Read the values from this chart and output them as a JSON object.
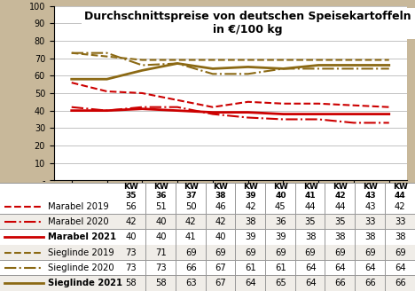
{
  "title_line1": "Durchschnittspreise von deutschen Speisekartoffeln",
  "title_line2": "in €/100 kg",
  "kw_labels": [
    "KW\n35",
    "KW\n36",
    "KW\n37",
    "KW\n38",
    "KW\n39",
    "KW\n40",
    "KW\n41",
    "KW\n42",
    "KW\n43",
    "KW\n44"
  ],
  "series": [
    {
      "name": "Marabel 2019",
      "values": [
        56,
        51,
        50,
        46,
        42,
        45,
        44,
        44,
        43,
        42
      ],
      "color": "#cc0000",
      "linestyle": "--",
      "linewidth": 1.5
    },
    {
      "name": "Marabel 2020",
      "values": [
        42,
        40,
        42,
        42,
        38,
        36,
        35,
        35,
        33,
        33
      ],
      "color": "#cc0000",
      "linestyle": "-.",
      "linewidth": 1.5
    },
    {
      "name": "Marabel 2021",
      "values": [
        40,
        40,
        41,
        40,
        39,
        39,
        38,
        38,
        38,
        38
      ],
      "color": "#cc0000",
      "linestyle": "-",
      "linewidth": 2.0
    },
    {
      "name": "Sieglinde 2019",
      "values": [
        73,
        71,
        69,
        69,
        69,
        69,
        69,
        69,
        69,
        69
      ],
      "color": "#8B6914",
      "linestyle": "--",
      "linewidth": 1.5
    },
    {
      "name": "Sieglinde 2020",
      "values": [
        73,
        73,
        66,
        67,
        61,
        61,
        64,
        64,
        64,
        64
      ],
      "color": "#8B6914",
      "linestyle": "-.",
      "linewidth": 1.5
    },
    {
      "name": "Sieglinde 2021",
      "values": [
        58,
        58,
        63,
        67,
        64,
        65,
        64,
        66,
        66,
        66
      ],
      "color": "#8B6914",
      "linestyle": "-",
      "linewidth": 2.0
    }
  ],
  "ylim": [
    0,
    100
  ],
  "yticks": [
    0,
    10,
    20,
    30,
    40,
    50,
    60,
    70,
    80,
    90,
    100
  ],
  "ytick_labels": [
    "-",
    "10",
    "20",
    "30",
    "40",
    "50",
    "60",
    "70",
    "80",
    "90",
    "100"
  ],
  "plot_bg": "#ffffff",
  "outer_bg": "#c8b89a",
  "grid_color": "#aaaaaa",
  "title_fontsize": 9.0,
  "legend_fontsize": 7.2,
  "tick_fontsize": 7.0,
  "table_row_colors": [
    "#ffffff",
    "#f0ede8"
  ]
}
